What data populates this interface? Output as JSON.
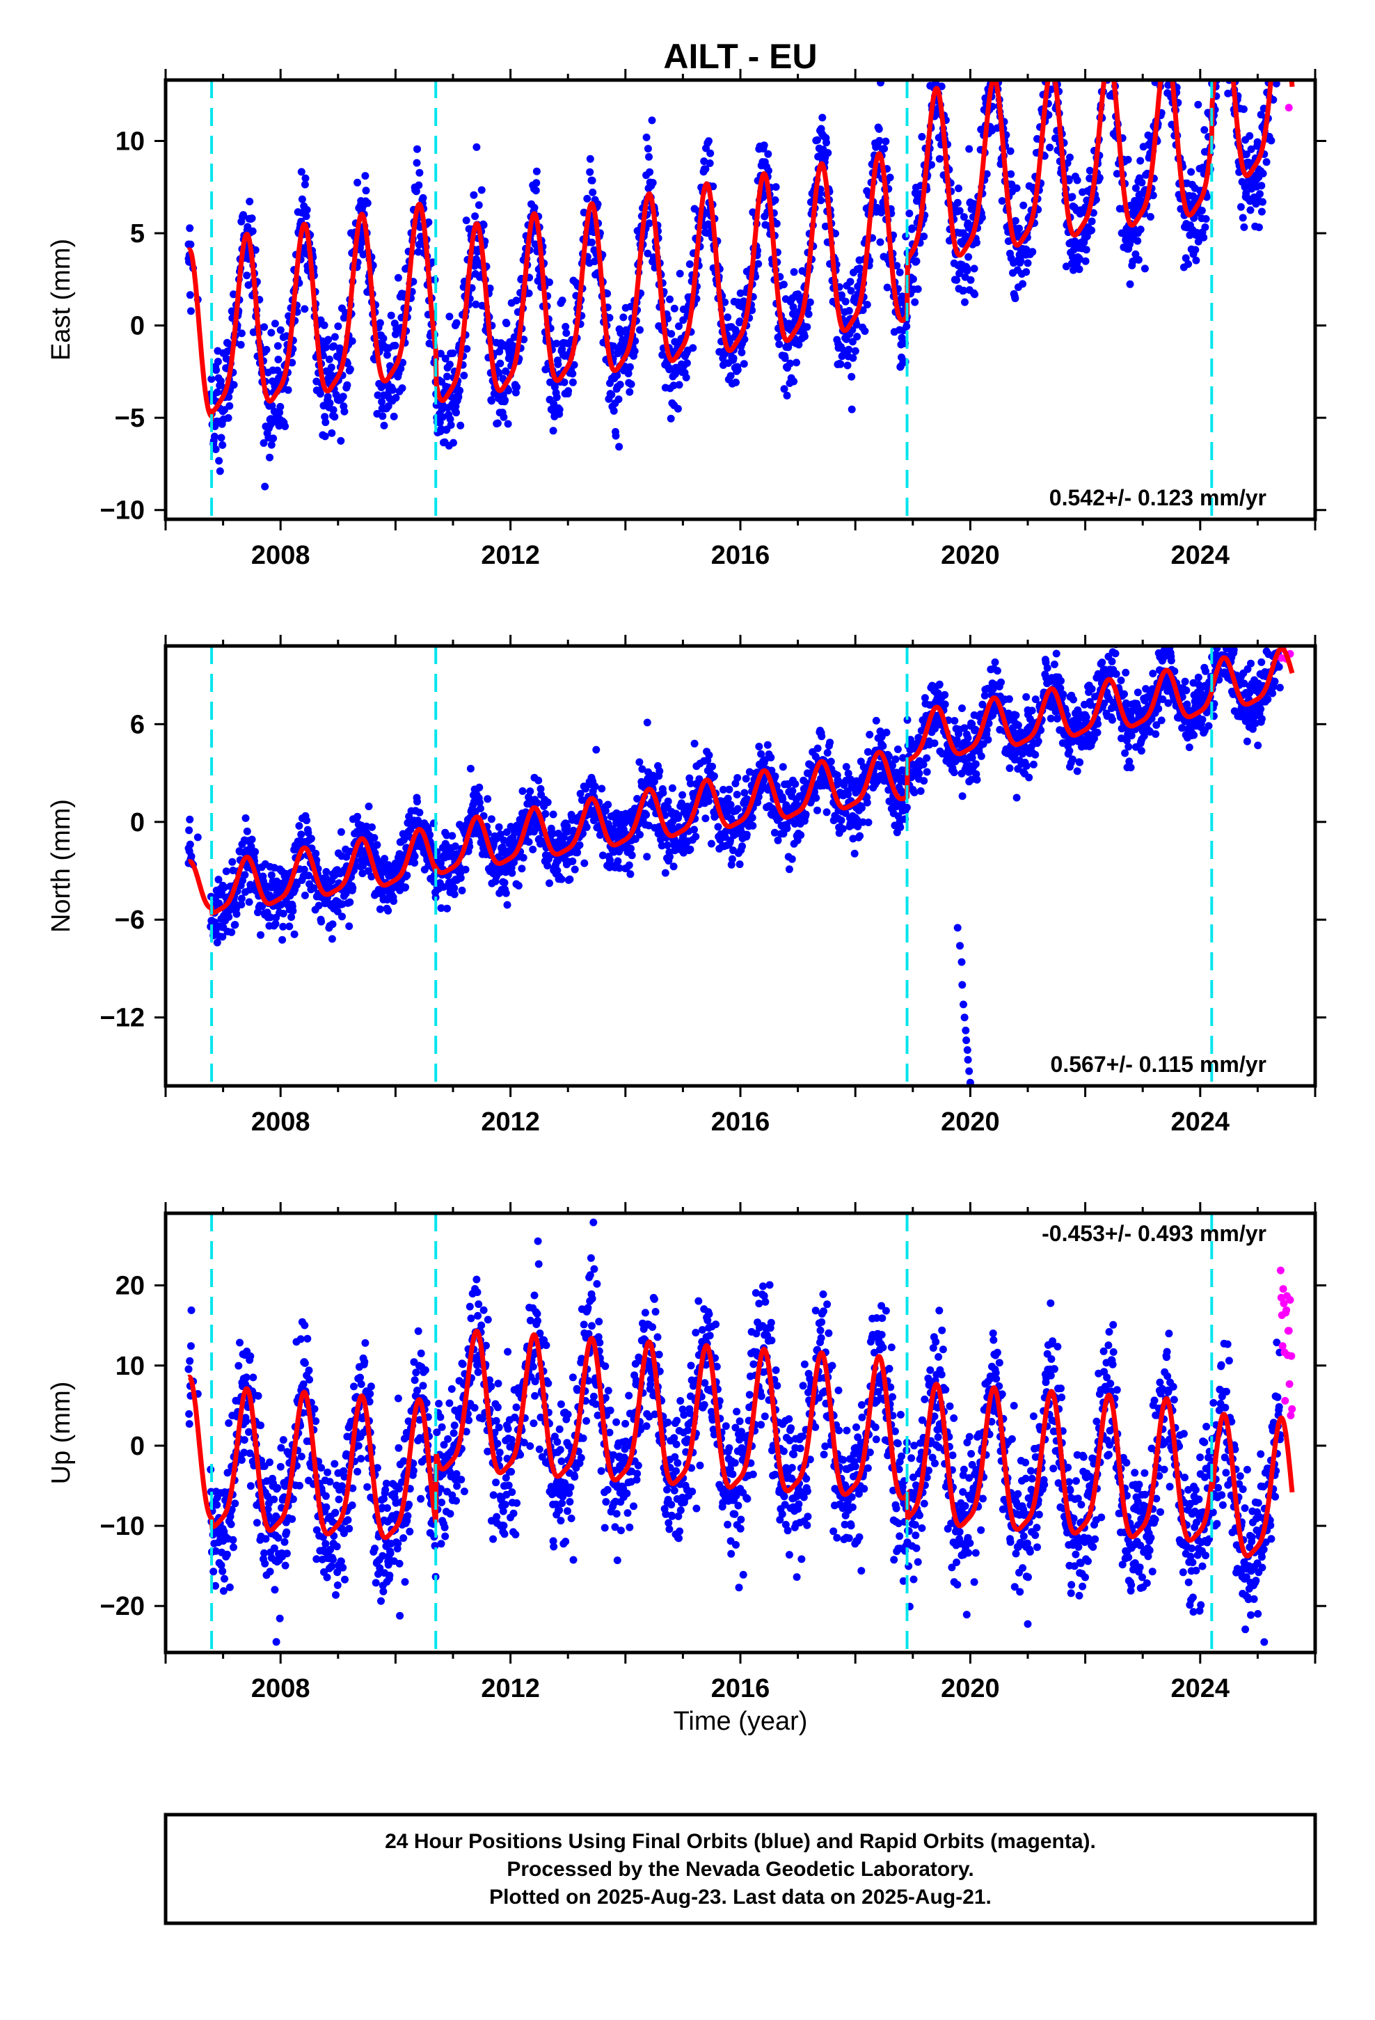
{
  "title": "AILT - EU",
  "colors": {
    "final_orbits": "#0000ff",
    "rapid_orbits": "#ff00ff",
    "model_fit": "#ff0000",
    "equipment_change": "#00e5ee"
  },
  "x_axis_label": "Time (year)",
  "x_ticks": [
    "2008",
    "2012",
    "2016",
    "2020",
    "2024"
  ],
  "footer": {
    "line1": "24 Hour Positions Using Final Orbits (blue) and Rapid Orbits (magenta).",
    "line2": "Processed by the Nevada Geodetic Laboratory.",
    "line3": "Plotted on 2025-Aug-23. Last data on 2025-Aug-21."
  },
  "chart_data": [
    {
      "type": "scatter",
      "component": "East",
      "ylabel": "East (mm)",
      "rate": "0.542+/- 0.123 mm/yr",
      "xlim": [
        2006.0,
        2026.0
      ],
      "ylim": [
        -10.5,
        13.3
      ],
      "yticks": [
        10,
        5,
        0,
        -5,
        -10
      ],
      "ytick_labels": [
        "10",
        "5",
        "0",
        "−5",
        "−10"
      ],
      "equipment_changes": [
        2006.8,
        2010.7,
        2018.9,
        2024.2
      ],
      "data_start": 2006.4,
      "data_end": 2025.6,
      "rapid_start": 2025.4,
      "trend_mm_per_yr": 0.542,
      "seasonal_amplitude_mm": 4.5,
      "scatter_noise_mm": 1.5,
      "offsets_mm": [
        [
          2006.4,
          -1.5
        ],
        [
          2006.8,
          -1.2
        ],
        [
          2010.7,
          -2.8
        ],
        [
          2018.9,
          0.2
        ],
        [
          2024.2,
          1.8
        ]
      ],
      "series": [
        {
          "name": "Final Orbits",
          "color": "#0000ff"
        },
        {
          "name": "Rapid Orbits",
          "color": "#ff00ff"
        },
        {
          "name": "Model fit",
          "color": "#ff0000"
        }
      ]
    },
    {
      "type": "scatter",
      "component": "North",
      "ylabel": "North (mm)",
      "rate": "0.567+/- 0.115 mm/yr",
      "xlim": [
        2006.0,
        2026.0
      ],
      "ylim": [
        -16.2,
        10.8
      ],
      "yticks": [
        6,
        0,
        -6,
        -12
      ],
      "ytick_labels": [
        "6",
        "0",
        "−6",
        "−12"
      ],
      "equipment_changes": [
        2006.8,
        2010.7,
        2018.9,
        2024.2
      ],
      "data_start": 2006.4,
      "data_end": 2025.6,
      "rapid_start": 2025.4,
      "trend_mm_per_yr": 0.567,
      "seasonal_amplitude_mm": 1.5,
      "scatter_noise_mm": 1.1,
      "offsets_mm": [
        [
          2006.4,
          -4.3
        ],
        [
          2006.8,
          -4.6
        ],
        [
          2010.7,
          -4.4
        ],
        [
          2018.9,
          -2.2
        ],
        [
          2024.2,
          -2.0
        ]
      ],
      "outliers": [
        [
          2019.78,
          -6.5
        ],
        [
          2019.82,
          -7.6
        ],
        [
          2019.85,
          -8.6
        ],
        [
          2019.86,
          -10.0
        ],
        [
          2019.88,
          -11.2
        ],
        [
          2019.9,
          -12.0
        ],
        [
          2019.92,
          -12.8
        ],
        [
          2019.93,
          -13.4
        ],
        [
          2019.95,
          -14.0
        ],
        [
          2019.96,
          -14.6
        ],
        [
          2019.98,
          -15.3
        ],
        [
          2020.0,
          -16.0
        ]
      ],
      "series": [
        {
          "name": "Final Orbits",
          "color": "#0000ff"
        },
        {
          "name": "Rapid Orbits",
          "color": "#ff00ff"
        },
        {
          "name": "Model fit",
          "color": "#ff0000"
        }
      ]
    },
    {
      "type": "scatter",
      "component": "Up",
      "ylabel": "Up (mm)",
      "rate": "-0.453+/- 0.493 mm/yr",
      "xlim": [
        2006.0,
        2026.0
      ],
      "ylim": [
        -25.8,
        29.0
      ],
      "yticks": [
        20,
        10,
        0,
        -10,
        -20
      ],
      "ytick_labels": [
        "20",
        "10",
        "0",
        "−10",
        "−20"
      ],
      "equipment_changes": [
        2006.8,
        2010.7,
        2018.9,
        2024.2
      ],
      "data_start": 2006.4,
      "data_end": 2025.6,
      "rapid_start": 2025.4,
      "trend_mm_per_yr": -0.453,
      "seasonal_amplitude_mm": 8.5,
      "scatter_noise_mm": 4.5,
      "offsets_mm": [
        [
          2006.4,
          -2.0
        ],
        [
          2006.8,
          -3.0
        ],
        [
          2010.7,
          6.0
        ],
        [
          2018.9,
          3.0
        ],
        [
          2024.2,
          1.5
        ]
      ],
      "series": [
        {
          "name": "Final Orbits",
          "color": "#0000ff"
        },
        {
          "name": "Rapid Orbits",
          "color": "#ff00ff"
        },
        {
          "name": "Model fit",
          "color": "#ff0000"
        }
      ]
    }
  ]
}
